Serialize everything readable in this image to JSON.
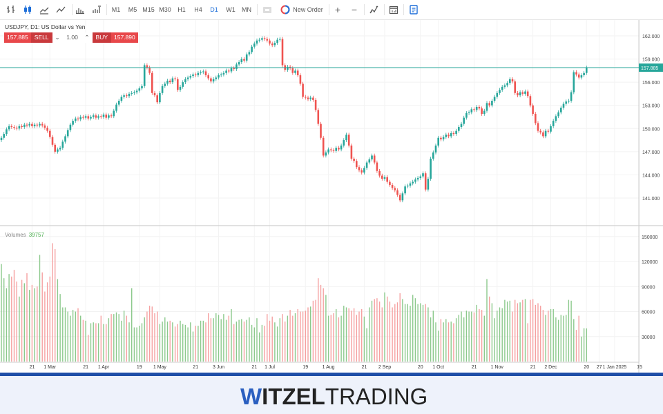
{
  "toolbar": {
    "chart_types": [
      "bar-chart-icon",
      "candlestick-icon",
      "line-chart-icon",
      "area-chart-icon"
    ],
    "volume_tools": [
      "volumes-icon",
      "tick-volumes-icon"
    ],
    "timeframes": [
      "M1",
      "M5",
      "M15",
      "M30",
      "H1",
      "H4",
      "D1",
      "W1",
      "MN"
    ],
    "active_timeframe": "D1",
    "new_order_label": "New Order",
    "zoom_in": "+",
    "zoom_out": "−"
  },
  "symbol_info": "USDJPY, D1: US Dollar vs Yen",
  "trade_panel": {
    "sell_price": "157.885",
    "sell_label": "SELL",
    "lot": "1.00",
    "buy_label": "BUY",
    "buy_price": "157.890"
  },
  "volumes_panel": {
    "label": "Volumes",
    "value": "39757"
  },
  "logo": {
    "part1": "W",
    "part2": "ITZEL",
    "part3": "TRADING"
  },
  "colors": {
    "up": "#26a69a",
    "down": "#ef5350",
    "vol_up": "#8cc98c",
    "vol_down": "#f6a1a1",
    "price_line": "#26a69a",
    "accent": "#1e6fd9"
  },
  "chart_data": {
    "type": "candlestick",
    "symbol": "USDJPY",
    "timeframe": "D1",
    "first_date": "2024-02-05",
    "last_date": "2024-12-27",
    "current_price": 157.885,
    "price_ylim": [
      138.5,
      163.5
    ],
    "price_ticks": [
      "162.000",
      "159.000",
      "156.000",
      "153.000",
      "150.000",
      "147.000",
      "144.000",
      "141.000"
    ],
    "volume_ticks": [
      "150000",
      "120000",
      "90000",
      "60000",
      "30000"
    ],
    "x_ticks": [
      {
        "date": "2024-02-21",
        "label": "21"
      },
      {
        "date": "2024-03-01",
        "label": "1 Mar"
      },
      {
        "date": "2024-03-21",
        "label": "21"
      },
      {
        "date": "2024-04-01",
        "label": "1 Apr"
      },
      {
        "date": "2024-04-19",
        "label": "19"
      },
      {
        "date": "2024-05-01",
        "label": "1 May"
      },
      {
        "date": "2024-05-21",
        "label": "21"
      },
      {
        "date": "2024-06-03",
        "label": "3 Jun"
      },
      {
        "date": "2024-06-21",
        "label": "21"
      },
      {
        "date": "2024-07-01",
        "label": "1 Jul"
      },
      {
        "date": "2024-07-19",
        "label": "19"
      },
      {
        "date": "2024-08-01",
        "label": "1 Aug"
      },
      {
        "date": "2024-08-21",
        "label": "21"
      },
      {
        "date": "2024-09-02",
        "label": "2 Sep"
      },
      {
        "date": "2024-09-20",
        "label": "20"
      },
      {
        "date": "2024-10-01",
        "label": "1 Oct"
      },
      {
        "date": "2024-10-21",
        "label": "21"
      },
      {
        "date": "2024-11-01",
        "label": "1 Nov"
      },
      {
        "date": "2024-11-21",
        "label": "21"
      },
      {
        "date": "2024-12-02",
        "label": "2 Dec"
      },
      {
        "date": "2024-12-20",
        "label": "20"
      },
      {
        "date": "2024-12-27",
        "label": "27"
      },
      {
        "date": "2025-01-01",
        "label": "1 Jan 2025"
      },
      {
        "date": "2025-01-15",
        "label": "15"
      }
    ],
    "close": [
      148.8,
      149.3,
      149.9,
      150.3,
      150.2,
      150.1,
      150.0,
      150.3,
      150.2,
      150.5,
      150.4,
      150.6,
      150.3,
      150.5,
      150.4,
      150.6,
      150.4,
      150.1,
      149.7,
      148.9,
      147.9,
      147.0,
      147.3,
      147.5,
      148.3,
      149.0,
      149.8,
      150.5,
      151.0,
      151.3,
      151.2,
      151.5,
      151.4,
      151.6,
      151.3,
      151.5,
      151.7,
      151.4,
      151.6,
      151.5,
      151.8,
      151.4,
      151.7,
      151.6,
      152.3,
      153.1,
      153.6,
      154.1,
      154.3,
      154.2,
      154.5,
      154.6,
      154.7,
      154.9,
      155.2,
      155.5,
      158.2,
      157.9,
      157.2,
      154.6,
      154.3,
      153.4,
      154.6,
      155.5,
      155.8,
      156.2,
      156.0,
      156.5,
      156.4,
      155.0,
      155.4,
      156.0,
      156.4,
      156.6,
      156.8,
      157.0,
      156.9,
      157.2,
      157.3,
      157.4,
      156.9,
      156.5,
      156.1,
      156.4,
      156.6,
      156.9,
      157.0,
      157.2,
      157.5,
      157.4,
      157.8,
      157.7,
      158.3,
      158.6,
      159.0,
      158.8,
      159.6,
      159.9,
      160.6,
      161.0,
      161.4,
      161.5,
      161.7,
      161.6,
      161.4,
      161.0,
      160.8,
      161.1,
      161.5,
      161.6,
      158.2,
      157.6,
      158.0,
      157.8,
      157.2,
      157.5,
      156.9,
      155.8,
      154.1,
      154.0,
      153.8,
      154.0,
      153.7,
      152.4,
      150.6,
      148.8,
      146.5,
      146.9,
      147.3,
      147.2,
      147.1,
      147.5,
      147.3,
      147.8,
      148.5,
      149.2,
      147.8,
      146.1,
      145.8,
      145.0,
      144.6,
      144.3,
      144.9,
      145.6,
      146.0,
      146.5,
      145.6,
      144.5,
      143.9,
      143.5,
      143.7,
      143.1,
      142.7,
      142.3,
      142.0,
      141.4,
      140.7,
      141.6,
      142.5,
      142.6,
      142.9,
      143.1,
      143.4,
      143.6,
      143.8,
      144.2,
      142.1,
      143.5,
      146.1,
      146.9,
      147.8,
      148.8,
      148.6,
      148.9,
      149.2,
      149.0,
      149.4,
      149.3,
      149.7,
      150.2,
      150.6,
      151.4,
      152.0,
      152.1,
      152.5,
      152.4,
      152.8,
      152.6,
      151.9,
      152.3,
      153.3,
      153.0,
      153.6,
      154.1,
      154.6,
      155.0,
      155.4,
      155.6,
      155.9,
      156.4,
      156.1,
      154.6,
      154.3,
      154.7,
      154.5,
      154.8,
      154.2,
      153.0,
      151.9,
      150.7,
      149.7,
      149.5,
      149.0,
      149.7,
      149.6,
      150.3,
      151.0,
      151.6,
      152.1,
      152.7,
      153.2,
      153.5,
      153.6,
      154.7,
      157.3,
      157.0,
      156.6,
      156.9,
      157.2,
      157.885
    ],
    "volume": [
      117000,
      100000,
      88000,
      105000,
      102000,
      110000,
      96000,
      78000,
      98000,
      94000,
      106000,
      86000,
      92000,
      88000,
      90000,
      128000,
      107000,
      84000,
      95000,
      102000,
      142000,
      135000,
      99000,
      81000,
      65000,
      65000,
      60000,
      55000,
      62000,
      60000,
      64000,
      55000,
      50000,
      49000,
      32000,
      46000,
      47000,
      46000,
      46000,
      55000,
      45000,
      45000,
      52000,
      57000,
      57000,
      59000,
      57000,
      49000,
      61000,
      55000,
      47000,
      88000,
      41000,
      41000,
      43000,
      46000,
      53000,
      60000,
      67000,
      66000,
      58000,
      60000,
      45000,
      48000,
      53000,
      48000,
      49000,
      47000,
      42000,
      45000,
      49000,
      45000,
      44000,
      41000,
      47000,
      36000,
      43000,
      43000,
      49000,
      49000,
      47000,
      58000,
      52000,
      52000,
      58000,
      56000,
      51000,
      57000,
      50000,
      55000,
      63000,
      45000,
      48000,
      50000,
      51000,
      48000,
      50000,
      53000,
      44000,
      41000,
      52000,
      35000,
      44000,
      43000,
      57000,
      49000,
      54000,
      47000,
      42000,
      52000,
      57000,
      48000,
      55000,
      62000,
      55000,
      58000,
      63000,
      60000,
      60000,
      61000,
      65000,
      66000,
      73000,
      74000,
      100000,
      92000,
      88000,
      80000,
      55000,
      56000,
      58000,
      63000,
      53000,
      55000,
      67000,
      65000,
      64000,
      61000,
      64000,
      56000,
      60000,
      63000,
      54000,
      40000,
      65000,
      73000,
      75000,
      76000,
      72000,
      65000,
      83000,
      78000,
      72000,
      65000,
      69000,
      71000,
      82000,
      75000,
      69000,
      69000,
      67000,
      80000,
      76000,
      69000,
      70000,
      68000,
      69000,
      65000,
      53000,
      61000,
      47000,
      37000,
      51000,
      47000,
      51000,
      47000,
      48000,
      46000,
      52000,
      56000,
      60000,
      53000,
      61000,
      60000,
      60000,
      59000,
      68000,
      63000,
      62000,
      55000,
      99000,
      78000,
      70000,
      52000,
      61000,
      65000,
      64000,
      74000,
      72000,
      73000,
      60000,
      74000,
      70000,
      71000,
      74000,
      75000,
      46000,
      74000,
      75000,
      68000,
      70000,
      67000,
      62000,
      56000,
      61000,
      63000,
      63000,
      53000,
      50000,
      56000,
      55000,
      56000,
      74000,
      73000,
      51000,
      38000,
      55000,
      30000,
      40000,
      39757
    ]
  }
}
